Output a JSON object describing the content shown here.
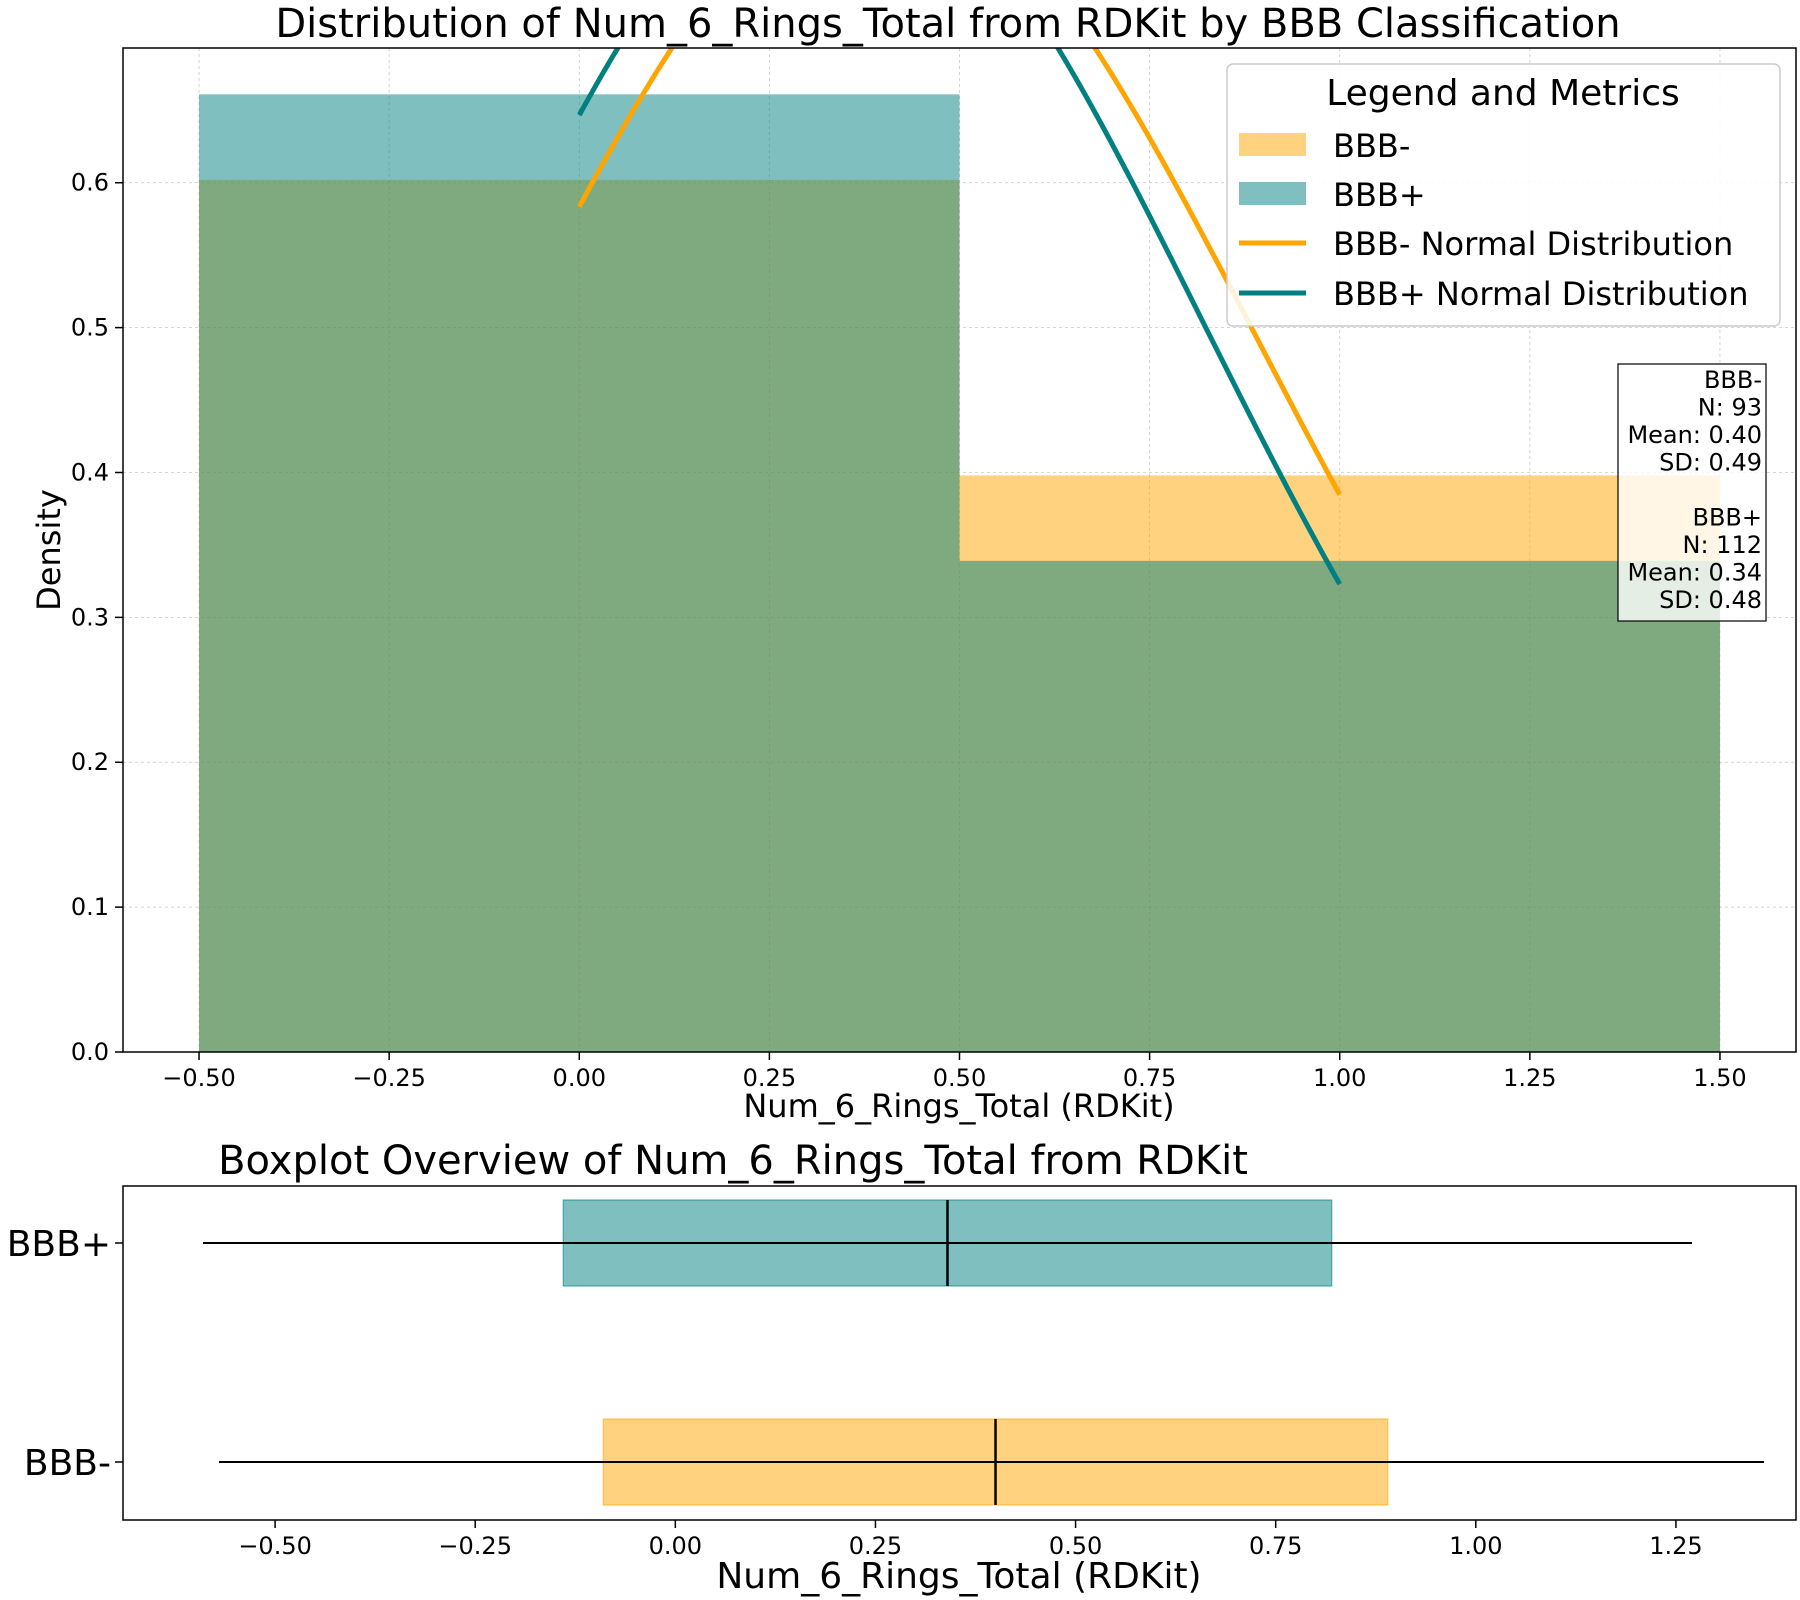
{
  "chart_data": [
    {
      "type": "histogram",
      "title": "Distribution of Num_6_Rings_Total from RDKit by BBB Classification",
      "xlabel": "Num_6_Rings_Total (RDKit)",
      "ylabel": "Density",
      "xlim": [
        -0.6,
        1.6
      ],
      "ylim": [
        0,
        0.693
      ],
      "xticks": [
        "−0.50",
        "−0.25",
        "0.00",
        "0.25",
        "0.50",
        "0.75",
        "1.00",
        "1.25",
        "1.50"
      ],
      "xtick_values": [
        -0.5,
        -0.25,
        0,
        0.25,
        0.5,
        0.75,
        1.0,
        1.25,
        1.5
      ],
      "yticks": [
        "0.0",
        "0.1",
        "0.2",
        "0.3",
        "0.4",
        "0.5",
        "0.6"
      ],
      "ytick_values": [
        0,
        0.1,
        0.2,
        0.3,
        0.4,
        0.5,
        0.6
      ],
      "grid": true,
      "bin_edges": [
        -0.5,
        0.5,
        1.5
      ],
      "series": [
        {
          "name": "BBB-",
          "kind": "hist",
          "color": "#FFA500",
          "alpha": 0.5,
          "values": [
            0.602,
            0.398
          ]
        },
        {
          "name": "BBB+",
          "kind": "hist",
          "color": "#008080",
          "alpha": 0.5,
          "values": [
            0.661,
            0.339
          ]
        },
        {
          "name": "BBB- Normal Distribution",
          "kind": "line",
          "color": "#FFA500",
          "mean": 0.4,
          "sd": 0.49,
          "x_range": [
            0,
            1
          ]
        },
        {
          "name": "BBB+ Normal Distribution",
          "kind": "line",
          "color": "#008080",
          "mean": 0.34,
          "sd": 0.48,
          "x_range": [
            0,
            1
          ]
        }
      ],
      "legend": {
        "title": "Legend and Metrics",
        "placement": "top-right"
      },
      "annotation": [
        "BBB-",
        "N: 93",
        "Mean: 0.40",
        "SD: 0.49",
        "",
        "BBB+",
        "N: 112",
        "Mean: 0.34",
        "SD: 0.48"
      ]
    },
    {
      "type": "box",
      "title": "Boxplot Overview of Num_6_Rings_Total from RDKit",
      "xlabel": "Num_6_Rings_Total (RDKit)",
      "xlim": [
        -0.69,
        1.4
      ],
      "xticks": [
        "−0.50",
        "−0.25",
        "0.00",
        "0.25",
        "0.50",
        "0.75",
        "1.00",
        "1.25"
      ],
      "xtick_values": [
        -0.5,
        -0.25,
        0,
        0.25,
        0.5,
        0.75,
        1.0,
        1.25
      ],
      "categories": [
        "BBB+",
        "BBB-"
      ],
      "series": [
        {
          "name": "BBB+",
          "color": "#008080",
          "whisker_low": -0.59,
          "q1": -0.14,
          "median": 0.34,
          "q3": 0.82,
          "whisker_high": 1.27
        },
        {
          "name": "BBB-",
          "color": "#FFA500",
          "whisker_low": -0.57,
          "q1": -0.09,
          "median": 0.4,
          "q3": 0.89,
          "whisker_high": 1.36
        }
      ]
    }
  ]
}
